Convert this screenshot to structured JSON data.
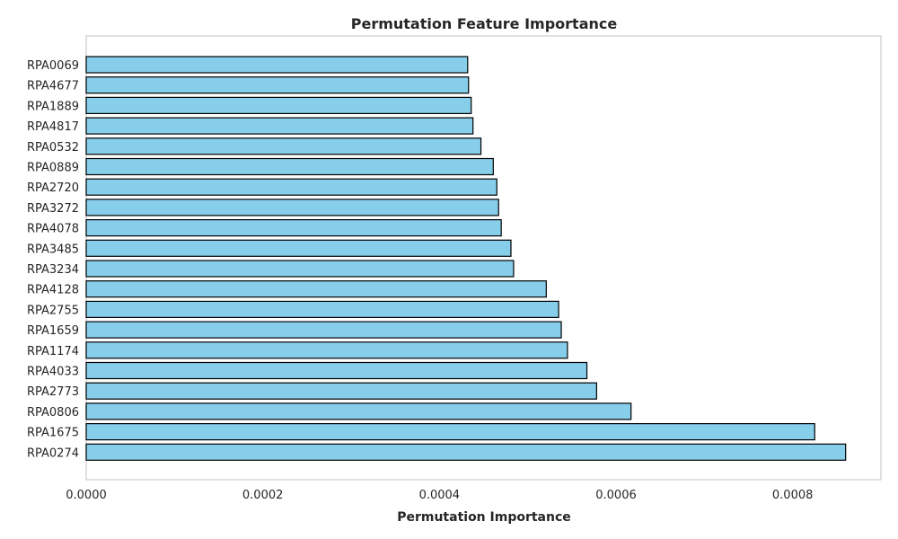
{
  "chart_data": {
    "type": "bar",
    "orientation": "horizontal",
    "title": "Permutation Feature Importance",
    "xlabel": "Permutation Importance",
    "ylabel": "",
    "xlim": [
      0,
      0.0009
    ],
    "x_ticks": [
      "0.0000",
      "0.0002",
      "0.0004",
      "0.0006",
      "0.0008"
    ],
    "x_tick_values": [
      0,
      0.0002,
      0.0004,
      0.0006,
      0.0008
    ],
    "grid": false,
    "legend": "none",
    "bar_color": "#87CEEB",
    "bar_edge_color": "#000000",
    "frame_color": "#cccccc",
    "categories": [
      "RPA0274",
      "RPA1675",
      "RPA0806",
      "RPA2773",
      "RPA4033",
      "RPA1174",
      "RPA1659",
      "RPA2755",
      "RPA4128",
      "RPA3234",
      "RPA3485",
      "RPA4078",
      "RPA3272",
      "RPA2720",
      "RPA0889",
      "RPA0532",
      "RPA4817",
      "RPA1889",
      "RPA4677",
      "RPA0069"
    ],
    "values": [
      0.00086,
      0.000825,
      0.000617,
      0.000578,
      0.000567,
      0.000545,
      0.000538,
      0.000535,
      0.000521,
      0.000484,
      0.000481,
      0.00047,
      0.000467,
      0.000465,
      0.000461,
      0.000447,
      0.000438,
      0.000436,
      0.000433,
      0.000432
    ]
  }
}
